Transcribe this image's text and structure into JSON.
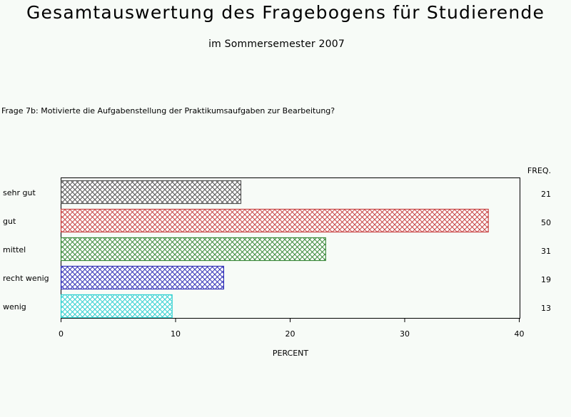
{
  "header": {
    "title": "Gesamtauswertung des Fragebogens für Studierende",
    "subtitle": "im Sommersemester 2007"
  },
  "question": "Frage 7b: Motivierte die Aufgabenstellung der Praktikumsaufgaben zur Bearbeitung?",
  "chart_data": {
    "type": "bar",
    "orientation": "horizontal",
    "categories": [
      "sehr gut",
      "gut",
      "mittel",
      "recht wenig",
      "wenig"
    ],
    "values": [
      15.7,
      37.3,
      23.1,
      14.2,
      9.7
    ],
    "freq_header": "FREQ.",
    "freq": [
      "21",
      "50",
      "31",
      "19",
      "13"
    ],
    "xlabel": "PERCENT",
    "xlim": [
      0,
      40
    ],
    "xticks": [
      "0",
      "10",
      "20",
      "30",
      "40"
    ],
    "colors": [
      "#555555",
      "#c84646",
      "#3c8a3c",
      "#3434b8",
      "#33d0d0"
    ],
    "fill_pattern": "crosshatch",
    "grid": false
  }
}
